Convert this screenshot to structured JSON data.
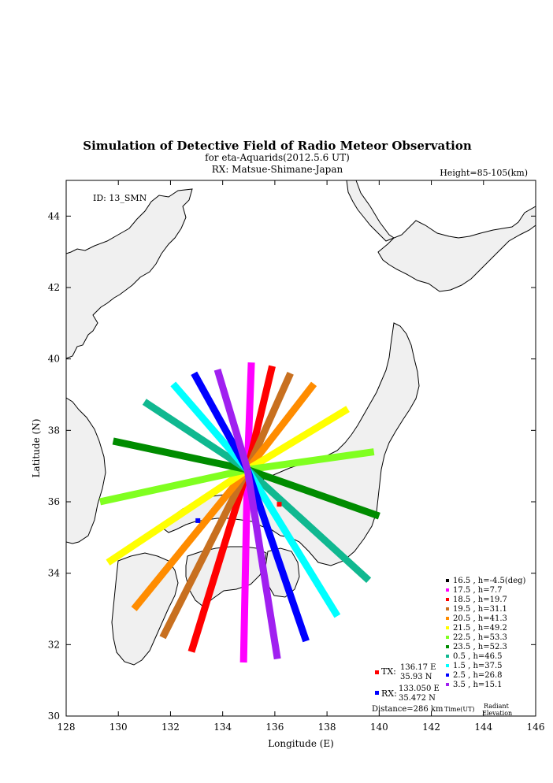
{
  "chart_data": {
    "type": "line",
    "title": "Simulation of Detective Field of Radio Meteor Observation",
    "subtitle1": "for eta-Aquarids(2012.5.6 UT)",
    "subtitle2": "RX: Matsue-Shimane-Japan",
    "height_label": "Height=85-105(km)",
    "id_label": "ID: 13_SMN",
    "xlabel": "Longitude (E)",
    "ylabel": "Latitude (N)",
    "xlim": [
      128,
      146
    ],
    "ylim": [
      30,
      45
    ],
    "xticks": [
      "128",
      "130",
      "132",
      "134",
      "136",
      "138",
      "140",
      "142",
      "144",
      "146"
    ],
    "yticks": [
      "30",
      "32",
      "34",
      "36",
      "38",
      "40",
      "42",
      "44"
    ],
    "center": [
      134.95,
      36.9
    ],
    "tx": {
      "label": "TX:",
      "lon_text": "136.17 E",
      "lat_text": "35.93 N",
      "lon": 136.17,
      "lat": 35.93,
      "color": "#ff0000"
    },
    "rx": {
      "label": "RX:",
      "lon_text": "133.050 E",
      "lat_text": "35.472 N",
      "lon": 133.05,
      "lat": 35.472,
      "color": "#0000ff"
    },
    "distance": "Distance=286 km",
    "time_header": "Time(UT)",
    "radiant_header": "Radiant",
    "elevation_header": "Elevation",
    "series": [
      {
        "name": "16.5 ,  h=-4.5(deg)",
        "color": "#000000",
        "end": null
      },
      {
        "name": "17.5 ,  h=7.7",
        "color": "#ff00ff",
        "end": [
          134.8,
          31.5
        ]
      },
      {
        "name": "18.5 ,  h=19.7",
        "color": "#ff0000",
        "end": [
          132.8,
          31.8
        ]
      },
      {
        "name": "19.5 ,  h=31.1",
        "color": "#c87020",
        "end": [
          131.7,
          32.2
        ]
      },
      {
        "name": "20.5 ,  h=41.3",
        "color": "#ff8c00",
        "end": [
          130.6,
          33.0
        ]
      },
      {
        "name": "21.5 ,  h=49.2",
        "color": "#ffff00",
        "end": [
          129.6,
          34.3
        ]
      },
      {
        "name": "22.5 ,  h=53.3",
        "color": "#80ff20",
        "end": [
          129.3,
          36.0
        ]
      },
      {
        "name": "23.5 ,  h=52.3",
        "color": "#008c00",
        "end": [
          129.8,
          37.7
        ]
      },
      {
        "name": "0.5 ,  h=46.5",
        "color": "#10b890",
        "end": [
          131.0,
          38.8
        ]
      },
      {
        "name": "1.5 ,  h=37.5",
        "color": "#00ffff",
        "end": [
          132.1,
          39.3
        ]
      },
      {
        "name": "2.5 ,  h=26.8",
        "color": "#0000ff",
        "end": [
          132.9,
          39.6
        ]
      },
      {
        "name": "3.5 ,  h=15.1",
        "color": "#a020f0",
        "end": [
          133.8,
          39.7
        ]
      }
    ],
    "mirror_ends": {
      "17.5 ,  h=7.7": [
        135.1,
        39.9
      ],
      "18.5 ,  h=19.7": [
        135.9,
        39.8
      ],
      "19.5 ,  h=31.1": [
        136.6,
        39.6
      ],
      "20.5 ,  h=41.3": [
        137.5,
        39.3
      ],
      "21.5 ,  h=49.2": [
        138.8,
        38.6
      ],
      "22.5 ,  h=53.3": [
        139.8,
        37.4
      ],
      "23.5 ,  h=52.3": [
        140.0,
        35.6
      ],
      "0.5 ,  h=46.5": [
        139.6,
        33.8
      ],
      "1.5 ,  h=37.5": [
        138.4,
        32.8
      ],
      "2.5 ,  h=26.8": [
        137.2,
        32.1
      ],
      "3.5 ,  h=15.1": [
        136.1,
        31.6
      ]
    }
  }
}
